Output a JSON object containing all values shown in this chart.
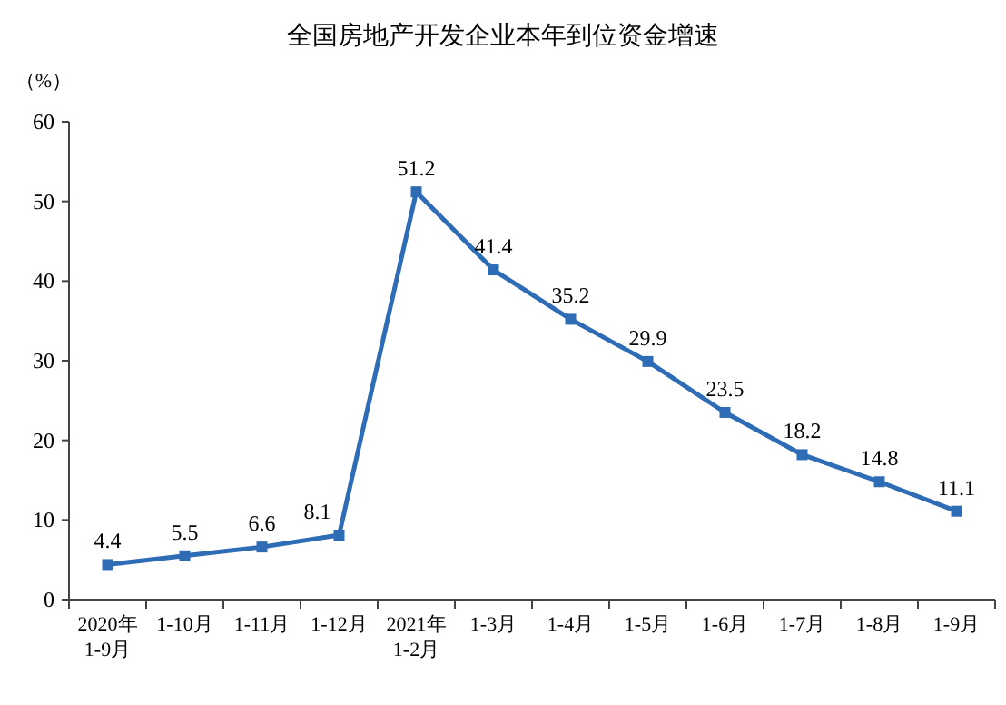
{
  "chart_data": {
    "type": "line",
    "title": "全国房地产开发企业本年到位资金增速",
    "ylabel": "（%）",
    "categories": [
      "2020年\n1-9月",
      "1-10月",
      "1-11月",
      "1-12月",
      "2021年\n1-2月",
      "1-3月",
      "1-4月",
      "1-5月",
      "1-6月",
      "1-7月",
      "1-8月",
      "1-9月"
    ],
    "series": [
      {
        "color": "#2f6cb6",
        "values": [
          4.4,
          5.5,
          6.6,
          8.1,
          51.2,
          41.4,
          35.2,
          29.9,
          23.5,
          18.2,
          14.8,
          11.1
        ]
      }
    ],
    "ylim": [
      0,
      60
    ],
    "yticks": [
      0,
      10,
      20,
      30,
      40,
      50,
      60
    ],
    "data_labels": true,
    "marker": "square",
    "line_style": "solid",
    "grid": false
  }
}
